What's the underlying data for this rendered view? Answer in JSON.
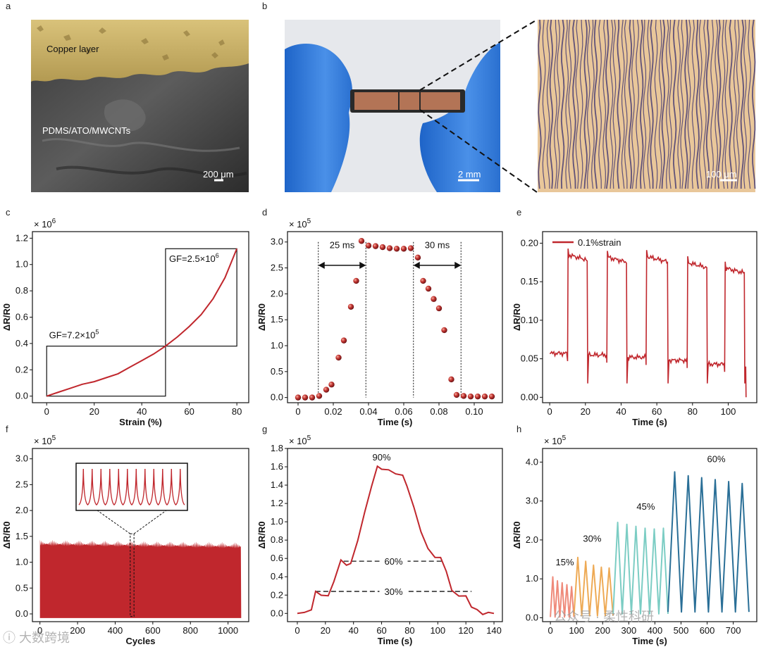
{
  "panel_letters": [
    "a",
    "b",
    "c",
    "d",
    "e",
    "f",
    "g",
    "h"
  ],
  "panel_a": {
    "label_top": "Copper layer",
    "label_bottom": "PDMS/ATO/MWCNTs",
    "scale": "200 μm"
  },
  "panel_b": {
    "scale_photo": "2 mm",
    "scale_micro": "100 μm"
  },
  "colors": {
    "red": "#c0272d",
    "dot": "#b5242b",
    "orange": "#eeaa55",
    "salmon": "#ef8a7a",
    "teal": "#7ccdc4",
    "blue": "#2a6f97"
  },
  "chart_data": [
    {
      "id": "c",
      "type": "line",
      "xlabel": "Strain (%)",
      "ylabel": "ΔR/R0",
      "multiplier": "× 10",
      "multiplier_exp": "6",
      "xlim": [
        -6,
        85
      ],
      "ylim": [
        -0.05,
        1.25
      ],
      "xticks": [
        0,
        20,
        40,
        60,
        80
      ],
      "xticklabels": [
        "0",
        "20",
        "40",
        "60",
        "80"
      ],
      "yticks": [
        0,
        0.2,
        0.4,
        0.6,
        0.8,
        1.0,
        1.2
      ],
      "yticklabels": [
        "0.0",
        "0.2",
        "0.4",
        "0.6",
        "0.8",
        "1.0",
        "1.2"
      ],
      "series": [
        {
          "x": [
            0,
            5,
            10,
            15,
            20,
            25,
            30,
            35,
            40,
            45,
            50,
            55,
            60,
            65,
            70,
            75,
            80
          ],
          "y": [
            0,
            0.03,
            0.06,
            0.09,
            0.11,
            0.14,
            0.17,
            0.22,
            0.27,
            0.32,
            0.38,
            0.45,
            0.53,
            0.62,
            0.74,
            0.9,
            1.12
          ]
        }
      ],
      "annotations": {
        "gf_low": "GF=7.2×10",
        "gf_low_exp": "5",
        "gf_high": "GF=2.5×10",
        "gf_high_exp": "6"
      },
      "boxes": [
        {
          "x0": 0,
          "y0": 0,
          "x1": 50,
          "y1": 0.38
        },
        {
          "x0": 50,
          "y0": 0.38,
          "x1": 80,
          "y1": 1.12
        }
      ]
    },
    {
      "id": "d",
      "type": "scatter",
      "xlabel": "Time (s)",
      "ylabel": "ΔR/R0",
      "multiplier": "× 10",
      "multiplier_exp": "5",
      "xlim": [
        -0.006,
        0.116
      ],
      "ylim": [
        -0.1,
        3.2
      ],
      "xticks": [
        0,
        0.02,
        0.04,
        0.06,
        0.08,
        0.1
      ],
      "xticklabels": [
        "0",
        "0.02",
        "0.04",
        "0.06",
        "0.08",
        "0.10"
      ],
      "yticks": [
        0,
        0.5,
        1.0,
        1.5,
        2.0,
        2.5,
        3.0
      ],
      "yticklabels": [
        "0.0",
        "0.5",
        "1.0",
        "1.5",
        "2.0",
        "2.5",
        "3.0"
      ],
      "points": {
        "x": [
          0,
          0.004,
          0.008,
          0.012,
          0.016,
          0.019,
          0.023,
          0.026,
          0.03,
          0.033,
          0.036,
          0.04,
          0.044,
          0.048,
          0.052,
          0.056,
          0.06,
          0.064,
          0.068,
          0.071,
          0.074,
          0.077,
          0.08,
          0.083,
          0.087,
          0.09,
          0.094,
          0.098,
          0.102,
          0.106,
          0.11
        ],
        "y": [
          0,
          0,
          0,
          0.03,
          0.15,
          0.25,
          0.77,
          1.1,
          1.75,
          2.25,
          3.02,
          2.93,
          2.92,
          2.9,
          2.88,
          2.87,
          2.87,
          2.88,
          2.7,
          2.25,
          2.1,
          1.9,
          1.72,
          1.3,
          0.35,
          0.05,
          0.03,
          0.02,
          0.02,
          0.02,
          0.02
        ]
      },
      "vlines": [
        0.0115,
        0.0385,
        0.0655,
        0.0925
      ],
      "spans": [
        {
          "from": 0.0115,
          "to": 0.0385,
          "y": 2.55,
          "label": "25 ms"
        },
        {
          "from": 0.0655,
          "to": 0.0925,
          "y": 2.55,
          "label": "30 ms"
        }
      ]
    },
    {
      "id": "e",
      "type": "line",
      "xlabel": "Time (s)",
      "ylabel": "ΔR/R0",
      "xlim": [
        -4,
        116
      ],
      "ylim": [
        -0.007,
        0.215
      ],
      "xticks": [
        0,
        20,
        40,
        60,
        80,
        100
      ],
      "xticklabels": [
        "0",
        "20",
        "40",
        "60",
        "80",
        "100"
      ],
      "yticks": [
        0,
        0.05,
        0.1,
        0.15,
        0.2
      ],
      "yticklabels": [
        "0.00",
        "0.05",
        "0.10",
        "0.15",
        "0.20"
      ],
      "series": [
        {
          "name": "0.1%strain",
          "cycles": [
            {
              "up": 10,
              "down": 21,
              "high": 0.185,
              "low": 0.055
            },
            {
              "up": 32,
              "down": 43,
              "high": 0.182,
              "low": 0.052
            },
            {
              "up": 54,
              "down": 66,
              "high": 0.183,
              "low": 0.048
            },
            {
              "up": 77,
              "down": 88,
              "high": 0.175,
              "low": 0.043
            },
            {
              "up": 98,
              "down": 109,
              "high": 0.168,
              "low": 0.04
            }
          ],
          "start": 0,
          "end": 110,
          "base": 0.057
        }
      ]
    },
    {
      "id": "f",
      "type": "area",
      "xlabel": "Cycles",
      "ylabel": "ΔR/R0",
      "multiplier": "× 10",
      "multiplier_exp": "5",
      "xlim": [
        -40,
        1110
      ],
      "ylim": [
        -0.15,
        3.2
      ],
      "xticks": [
        0,
        200,
        400,
        600,
        800,
        1000
      ],
      "xticklabels": [
        "0",
        "200",
        "400",
        "600",
        "800",
        "1000"
      ],
      "yticks": [
        0,
        0.5,
        1.0,
        1.5,
        2.0,
        2.5,
        3.0
      ],
      "yticklabels": [
        "0.0",
        "0.5",
        "1.0",
        "1.5",
        "2.0",
        "2.5",
        "3.0"
      ],
      "band": {
        "x0": 0,
        "x1": 1070,
        "min": -0.08,
        "max": 1.5
      },
      "inset": {
        "peaks": 12,
        "window": [
          480,
          500
        ]
      }
    },
    {
      "id": "g",
      "type": "line",
      "xlabel": "Time (s)",
      "ylabel": "ΔR/R0",
      "multiplier": "× 10",
      "multiplier_exp": "5",
      "xlim": [
        -7,
        146
      ],
      "ylim": [
        -0.09,
        1.8
      ],
      "xticks": [
        0,
        20,
        40,
        60,
        80,
        100,
        120,
        140
      ],
      "xticklabels": [
        "0",
        "20",
        "40",
        "60",
        "80",
        "100",
        "120",
        "140"
      ],
      "yticks": [
        0,
        0.2,
        0.4,
        0.6,
        0.8,
        1.0,
        1.2,
        1.4,
        1.6,
        1.8
      ],
      "yticklabels": [
        "0.0",
        "0.2",
        "0.4",
        "0.6",
        "0.8",
        "1.0",
        "1.2",
        "1.4",
        "1.6",
        "1.8"
      ],
      "series": [
        {
          "x": [
            0,
            5,
            10,
            13,
            17,
            22,
            26,
            31,
            35,
            38,
            43,
            48,
            53,
            57,
            60,
            65,
            70,
            75,
            78,
            83,
            88,
            93,
            98,
            102,
            106,
            110,
            115,
            120,
            124,
            128,
            132,
            136,
            140
          ],
          "y": [
            0,
            0.01,
            0.04,
            0.24,
            0.2,
            0.19,
            0.35,
            0.58,
            0.53,
            0.54,
            0.8,
            1.1,
            1.4,
            1.6,
            1.58,
            1.56,
            1.53,
            1.5,
            1.4,
            1.15,
            0.9,
            0.7,
            0.62,
            0.6,
            0.47,
            0.24,
            0.2,
            0.18,
            0.08,
            0.03,
            0.0,
            0.0,
            0.0
          ]
        }
      ],
      "levels": [
        {
          "y": 0.24,
          "x0": 13,
          "x1": 124,
          "label": "30%"
        },
        {
          "y": 0.57,
          "x0": 33,
          "x1": 104,
          "label": "60%"
        }
      ],
      "peak_label": {
        "x": 60,
        "y": 1.67,
        "text": "90%"
      }
    },
    {
      "id": "h",
      "type": "line",
      "xlabel": "Time (s)",
      "ylabel": "ΔR/R0",
      "multiplier": "× 10",
      "multiplier_exp": "5",
      "xlim": [
        -30,
        790
      ],
      "ylim": [
        -0.1,
        4.35
      ],
      "xticks": [
        0,
        100,
        200,
        300,
        400,
        500,
        600,
        700
      ],
      "xticklabels": [
        "0",
        "100",
        "200",
        "300",
        "400",
        "500",
        "600",
        "700"
      ],
      "yticks": [
        0,
        1.0,
        2.0,
        3.0,
        4.0
      ],
      "yticklabels": [
        "0.0",
        "1.0",
        "2.0",
        "3.0",
        "4.0"
      ],
      "segments": [
        {
          "label": "15%",
          "color": "#ef8a7a",
          "x0": 0,
          "x1": 90,
          "peaks": [
            1.05,
            0.95,
            0.9,
            0.85,
            0.8
          ],
          "low": 0.02
        },
        {
          "label": "30%",
          "color": "#eeaa55",
          "x0": 90,
          "x1": 240,
          "peaks": [
            1.55,
            1.45,
            1.35,
            1.3,
            1.28
          ],
          "low": 0.05
        },
        {
          "label": "45%",
          "color": "#7ccdc4",
          "x0": 240,
          "x1": 450,
          "peaks": [
            2.45,
            2.4,
            2.35,
            2.3,
            2.28,
            2.3
          ],
          "low": 0.1
        },
        {
          "label": "60%",
          "color": "#2a6f97",
          "x0": 450,
          "x1": 760,
          "peaks": [
            3.75,
            3.65,
            3.6,
            3.55,
            3.5,
            3.45
          ],
          "low": 0.15
        }
      ],
      "seg_labels": [
        {
          "text": "15%",
          "x": 55,
          "y": 1.35
        },
        {
          "text": "30%",
          "x": 160,
          "y": 1.95
        },
        {
          "text": "45%",
          "x": 365,
          "y": 2.78
        },
        {
          "text": "60%",
          "x": 635,
          "y": 4.0
        }
      ]
    }
  ],
  "watermarks": {
    "left": "ⓘ 大数跨境",
    "right": "公众号 · 柔性科研"
  }
}
